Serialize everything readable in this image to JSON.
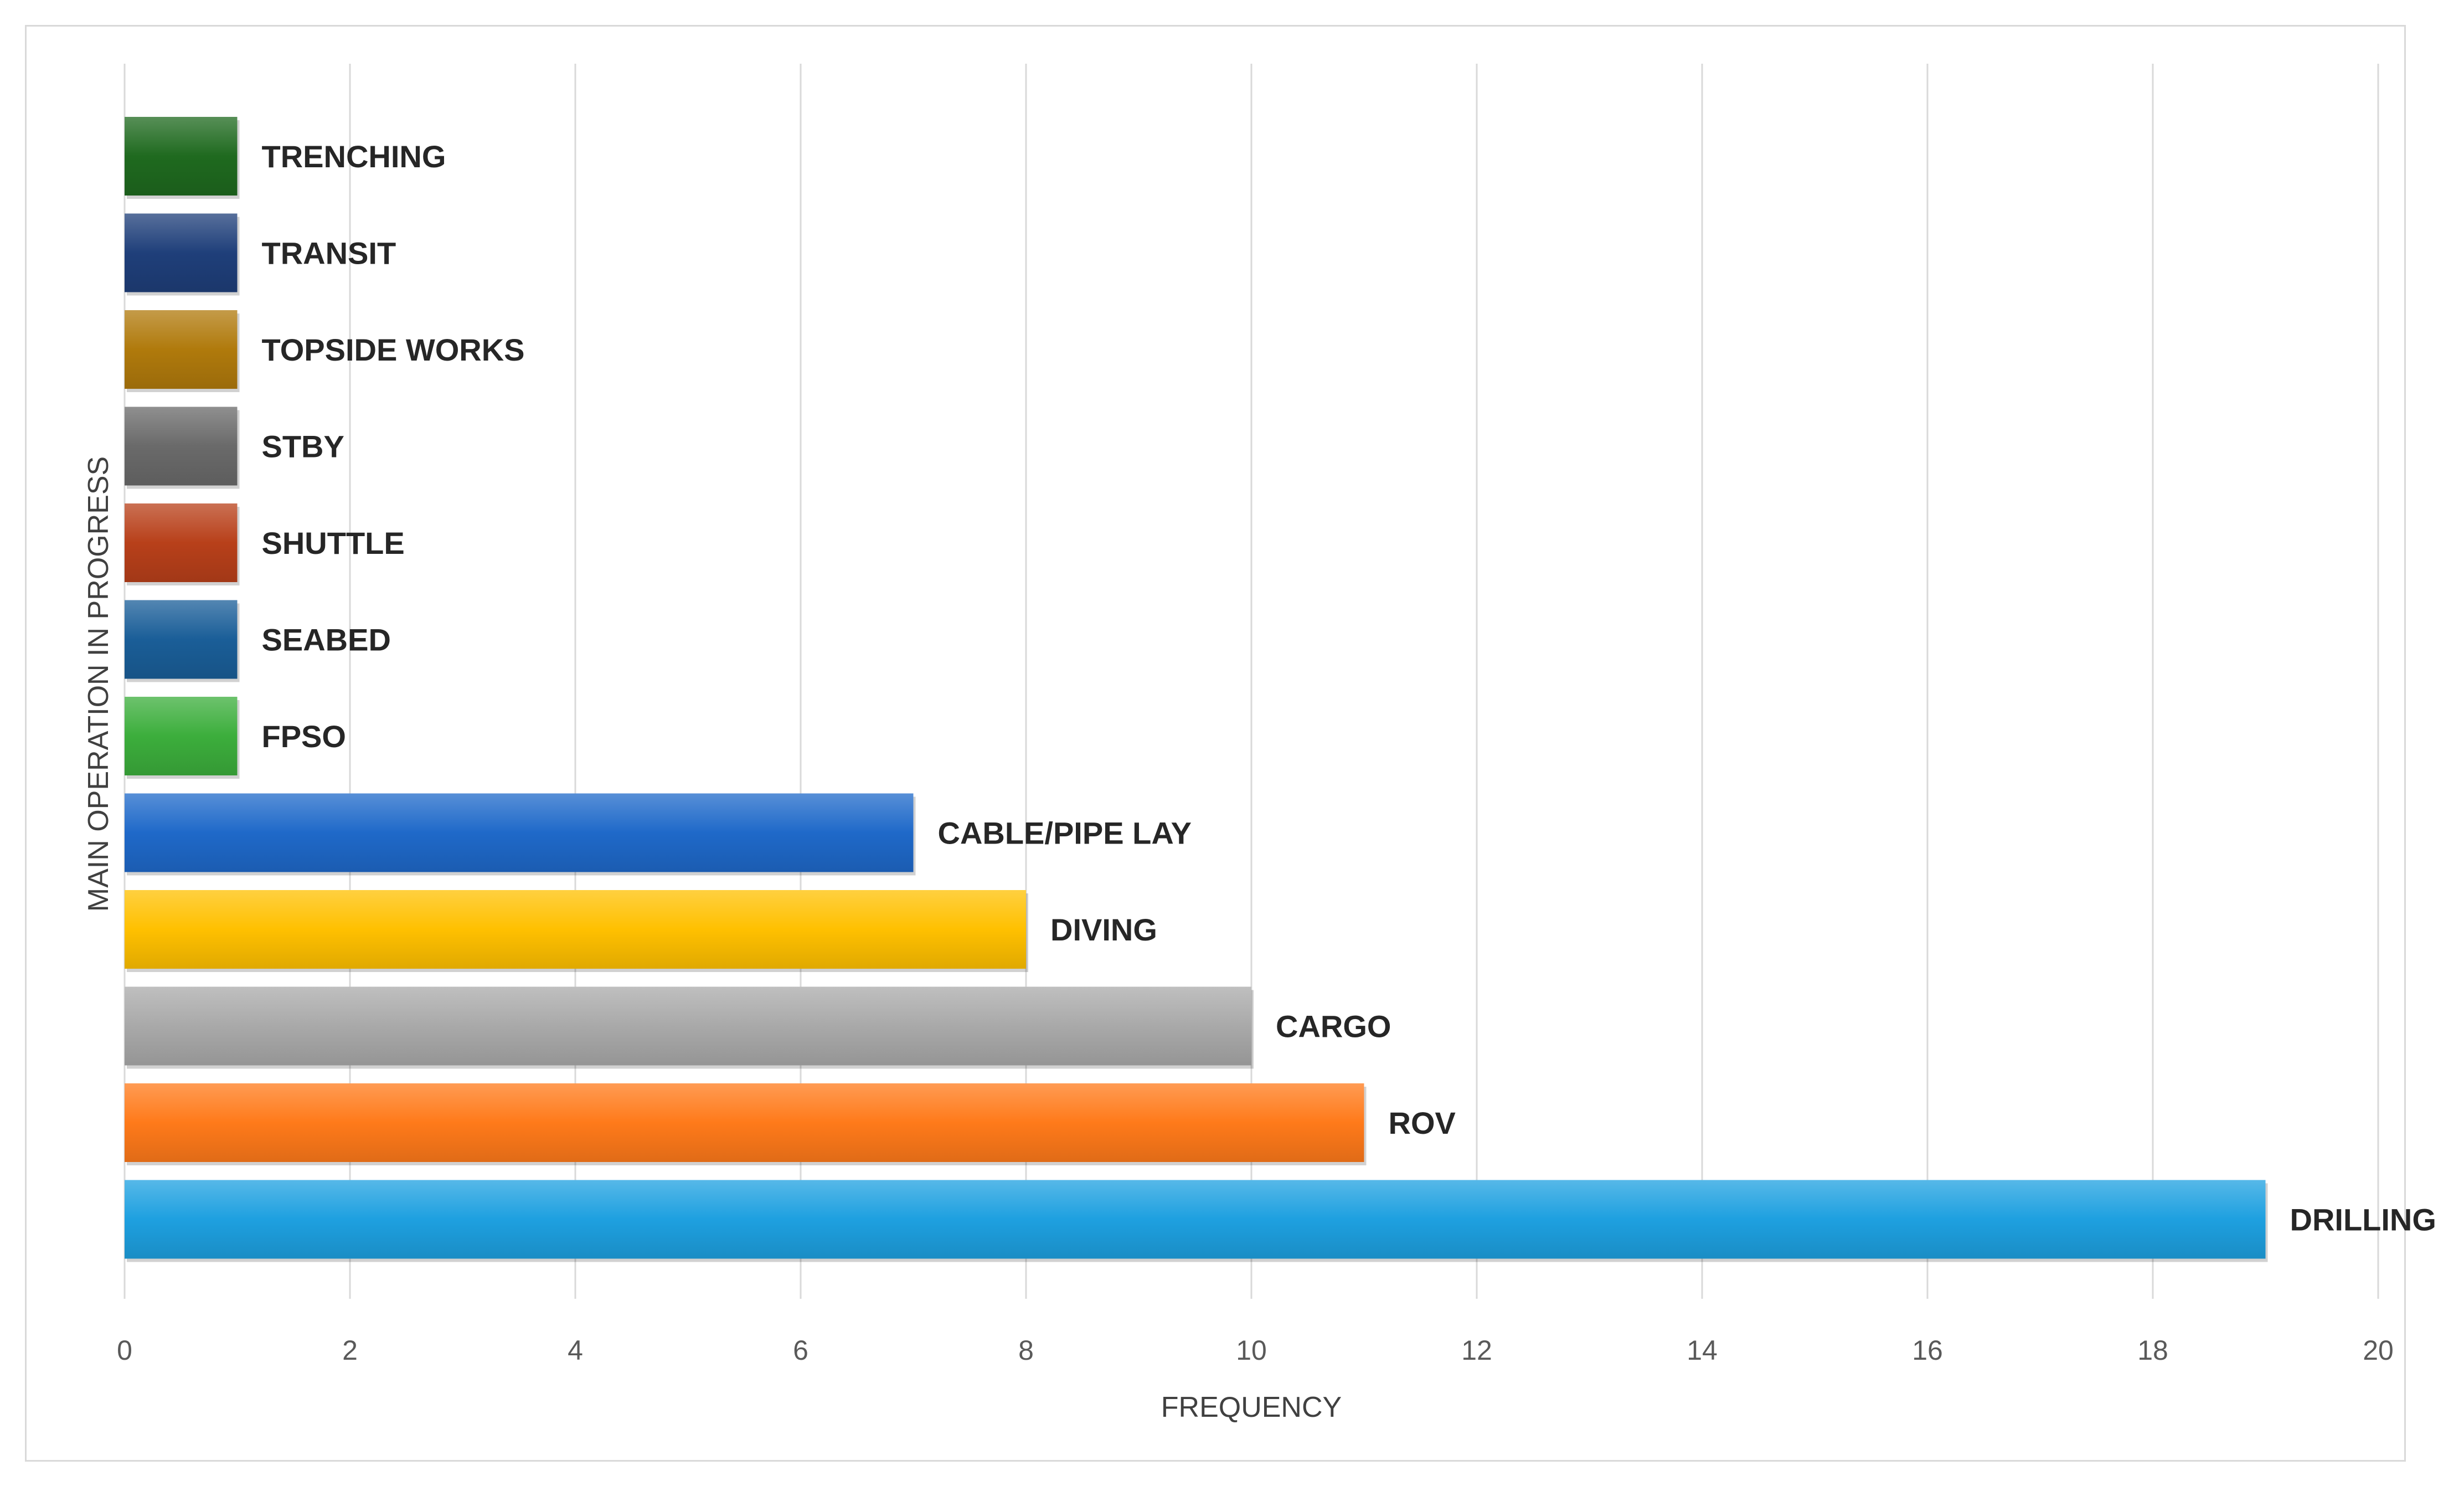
{
  "chart_data": {
    "type": "bar",
    "orientation": "horizontal",
    "title": "",
    "xlabel": "FREQUENCY",
    "ylabel": "MAIN OPERATION IN PROGRESS",
    "xlim": [
      0,
      20
    ],
    "xticks": [
      "0",
      "2",
      "4",
      "6",
      "8",
      "10",
      "12",
      "14",
      "16",
      "18",
      "20"
    ],
    "grid": true,
    "legend": "none",
    "categories": [
      "TRENCHING",
      "TRANSIT",
      "TOPSIDE WORKS",
      "STBY",
      "SHUTTLE",
      "SEABED",
      "FPSO",
      "CABLE/PIPE LAY",
      "DIVING",
      "CARGO",
      "ROV",
      "DRILLING"
    ],
    "values": [
      1,
      1,
      1,
      1,
      1,
      1,
      1,
      7,
      8,
      10,
      11,
      19
    ],
    "colors": [
      "#1f6a1f",
      "#1f3f7a",
      "#b07a0c",
      "#6a6a6a",
      "#b8401a",
      "#1a5e98",
      "#3cae3c",
      "#1f69c9",
      "#ffc000",
      "#a9a9a9",
      "#ff7a1a",
      "#1ea0e0"
    ]
  }
}
